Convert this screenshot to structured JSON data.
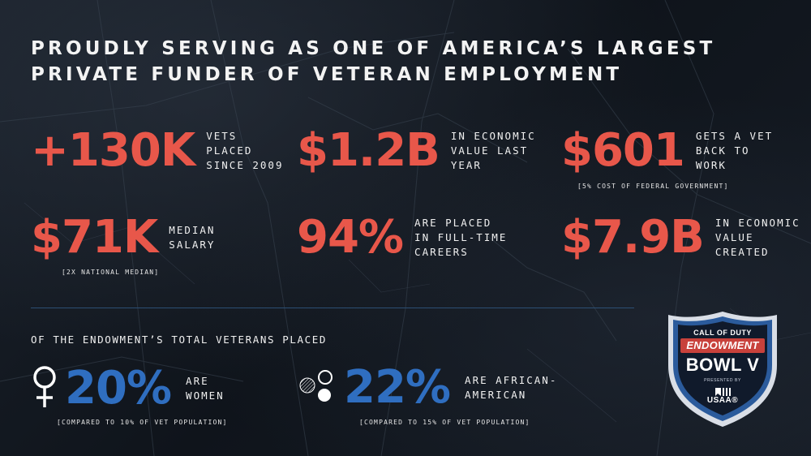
{
  "headline": {
    "line1": "PROUDLY SERVING AS ONE OF AMERICA’S LARGEST",
    "line2": "PRIVATE FUNDER OF VETERAN EMPLOYMENT"
  },
  "stats": [
    {
      "value": "+130K",
      "lines": [
        "VETS",
        "PLACED",
        "SINCE 2009"
      ],
      "note": ""
    },
    {
      "value": "$1.2B",
      "lines": [
        "IN ECONOMIC",
        "VALUE LAST",
        "YEAR"
      ],
      "note": ""
    },
    {
      "value": "$601",
      "lines": [
        "GETS A VET",
        "BACK TO",
        "WORK"
      ],
      "note": "[5% COST OF FEDERAL GOVERNMENT]"
    },
    {
      "value": "$71K",
      "lines": [
        "MEDIAN",
        "SALARY"
      ],
      "note": "[2X NATIONAL MEDIAN]"
    },
    {
      "value": "94%",
      "lines": [
        "ARE PLACED",
        "IN FULL-TIME",
        "CAREERS"
      ],
      "note": ""
    },
    {
      "value": "$7.9B",
      "lines": [
        "IN ECONOMIC",
        "VALUE",
        "CREATED"
      ],
      "note": ""
    }
  ],
  "demographics": {
    "heading": "OF THE ENDOWMENT’S TOTAL VETERANS PLACED",
    "items": [
      {
        "icon": "female-symbol-icon",
        "value": "20%",
        "lines": [
          "ARE",
          "WOMEN"
        ],
        "note": "[COMPARED TO 10% OF VET POPULATION]"
      },
      {
        "icon": "diversity-circles-icon",
        "value": "22%",
        "lines": [
          "ARE AFRICAN-",
          "AMERICAN"
        ],
        "note": "[COMPARED TO 15% OF VET POPULATION]"
      }
    ]
  },
  "badge": {
    "brand": "CALL OF DUTY",
    "program": "ENDOWMENT",
    "event": "BOWL V",
    "presented": "PRESENTED BY",
    "sponsor": "USAA®"
  },
  "colors": {
    "accent_red": "#e8574a",
    "accent_blue": "#2f6ec0",
    "badge_border": "#2b5b9c",
    "background": "#121821"
  }
}
